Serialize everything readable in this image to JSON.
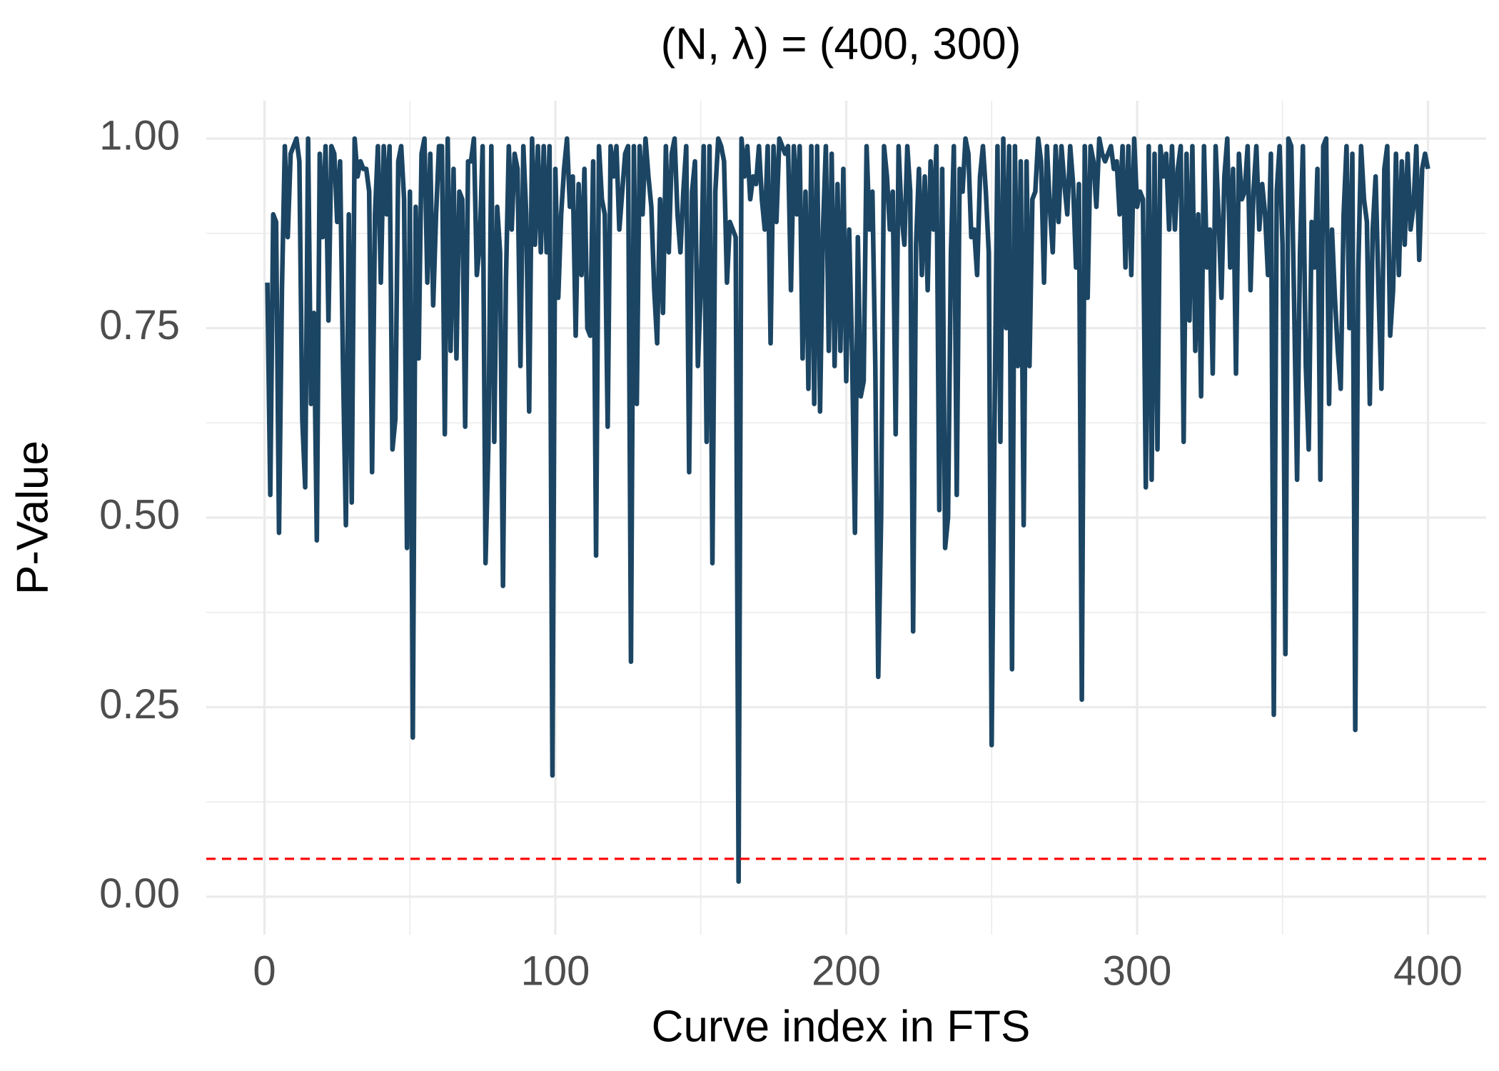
{
  "chart_data": {
    "type": "line",
    "title": "(N, λ) = (400, 300)",
    "xlabel": "Curve index in FTS",
    "ylabel": "P-Value",
    "x": [
      1,
      2,
      3,
      4,
      5,
      6,
      7,
      8,
      9,
      10,
      11,
      12,
      13,
      14,
      15,
      16,
      17,
      18,
      19,
      20,
      21,
      22,
      23,
      24,
      25,
      26,
      27,
      28,
      29,
      30,
      31,
      32,
      33,
      34,
      35,
      36,
      37,
      38,
      39,
      40,
      41,
      42,
      43,
      44,
      45,
      46,
      47,
      48,
      49,
      50,
      51,
      52,
      53,
      54,
      55,
      56,
      57,
      58,
      59,
      60,
      61,
      62,
      63,
      64,
      65,
      66,
      67,
      68,
      69,
      70,
      71,
      72,
      73,
      74,
      75,
      76,
      77,
      78,
      79,
      80,
      81,
      82,
      83,
      84,
      85,
      86,
      87,
      88,
      89,
      90,
      91,
      92,
      93,
      94,
      95,
      96,
      97,
      98,
      99,
      100,
      101,
      102,
      103,
      104,
      105,
      106,
      107,
      108,
      109,
      110,
      111,
      112,
      113,
      114,
      115,
      116,
      117,
      118,
      119,
      120,
      121,
      122,
      123,
      124,
      125,
      126,
      127,
      128,
      129,
      130,
      131,
      132,
      133,
      134,
      135,
      136,
      137,
      138,
      139,
      140,
      141,
      142,
      143,
      144,
      145,
      146,
      147,
      148,
      149,
      150,
      151,
      152,
      153,
      154,
      155,
      156,
      157,
      158,
      159,
      160,
      161,
      162,
      163,
      164,
      165,
      166,
      167,
      168,
      169,
      170,
      171,
      172,
      173,
      174,
      175,
      176,
      177,
      178,
      179,
      180,
      181,
      182,
      183,
      184,
      185,
      186,
      187,
      188,
      189,
      190,
      191,
      192,
      193,
      194,
      195,
      196,
      197,
      198,
      199,
      200,
      201,
      202,
      203,
      204,
      205,
      206,
      207,
      208,
      209,
      210,
      211,
      212,
      213,
      214,
      215,
      216,
      217,
      218,
      219,
      220,
      221,
      222,
      223,
      224,
      225,
      226,
      227,
      228,
      229,
      230,
      231,
      232,
      233,
      234,
      235,
      236,
      237,
      238,
      239,
      240,
      241,
      242,
      243,
      244,
      245,
      246,
      247,
      248,
      249,
      250,
      251,
      252,
      253,
      254,
      255,
      256,
      257,
      258,
      259,
      260,
      261,
      262,
      263,
      264,
      265,
      266,
      267,
      268,
      269,
      270,
      271,
      272,
      273,
      274,
      275,
      276,
      277,
      278,
      279,
      280,
      281,
      282,
      283,
      284,
      285,
      286,
      287,
      288,
      289,
      290,
      291,
      292,
      293,
      294,
      295,
      296,
      297,
      298,
      299,
      300,
      301,
      302,
      303,
      304,
      305,
      306,
      307,
      308,
      309,
      310,
      311,
      312,
      313,
      314,
      315,
      316,
      317,
      318,
      319,
      320,
      321,
      322,
      323,
      324,
      325,
      326,
      327,
      328,
      329,
      330,
      331,
      332,
      333,
      334,
      335,
      336,
      337,
      338,
      339,
      340,
      341,
      342,
      343,
      344,
      345,
      346,
      347,
      348,
      349,
      350,
      351,
      352,
      353,
      354,
      355,
      356,
      357,
      358,
      359,
      360,
      361,
      362,
      363,
      364,
      365,
      366,
      367,
      368,
      369,
      370,
      371,
      372,
      373,
      374,
      375,
      376,
      377,
      378,
      379,
      380,
      381,
      382,
      383,
      384,
      385,
      386,
      387,
      388,
      389,
      390,
      391,
      392,
      393,
      394,
      395,
      396,
      397,
      398,
      399,
      400
    ],
    "series": [
      {
        "name": "P-Value",
        "color": "#1b4563",
        "values": [
          0.81,
          0.53,
          0.9,
          0.89,
          0.48,
          0.8,
          0.99,
          0.87,
          0.98,
          0.99,
          1.0,
          0.97,
          0.63,
          0.54,
          1.0,
          0.65,
          0.77,
          0.47,
          0.98,
          0.87,
          0.99,
          0.76,
          0.99,
          0.98,
          0.89,
          0.97,
          0.7,
          0.49,
          0.9,
          0.52,
          1.0,
          0.95,
          0.97,
          0.96,
          0.96,
          0.93,
          0.56,
          0.9,
          0.99,
          0.81,
          0.99,
          0.9,
          0.99,
          0.59,
          0.63,
          0.97,
          0.99,
          0.92,
          0.46,
          0.93,
          0.21,
          0.91,
          0.71,
          0.98,
          1.0,
          0.81,
          0.98,
          0.78,
          0.9,
          0.99,
          0.99,
          0.61,
          1.0,
          0.72,
          0.96,
          0.71,
          0.93,
          0.92,
          0.62,
          0.97,
          0.97,
          1.0,
          0.82,
          0.86,
          0.99,
          0.44,
          0.6,
          0.99,
          0.6,
          0.91,
          0.85,
          0.41,
          0.81,
          0.99,
          0.88,
          0.98,
          0.96,
          0.7,
          0.99,
          0.9,
          0.64,
          1.0,
          0.86,
          0.99,
          0.85,
          0.99,
          0.85,
          0.99,
          0.16,
          0.96,
          0.79,
          0.9,
          0.96,
          1.0,
          0.91,
          0.95,
          0.74,
          0.94,
          0.82,
          0.96,
          0.75,
          0.74,
          0.97,
          0.45,
          0.99,
          0.92,
          0.9,
          0.62,
          0.99,
          0.95,
          0.99,
          0.88,
          0.93,
          0.98,
          0.99,
          0.31,
          0.99,
          0.65,
          0.99,
          0.9,
          1.0,
          0.95,
          0.91,
          0.8,
          0.73,
          0.92,
          0.77,
          0.99,
          0.85,
          0.98,
          1.0,
          0.9,
          0.85,
          0.93,
          0.99,
          0.56,
          0.93,
          0.97,
          0.7,
          0.8,
          0.99,
          0.6,
          0.99,
          0.44,
          0.93,
          1.0,
          0.99,
          0.97,
          0.81,
          0.89,
          0.88,
          0.87,
          0.02,
          1.0,
          0.95,
          0.99,
          0.92,
          0.95,
          0.94,
          0.99,
          0.92,
          0.88,
          0.99,
          0.73,
          0.99,
          0.89,
          1.0,
          0.99,
          0.98,
          0.99,
          0.8,
          0.99,
          0.9,
          0.99,
          0.71,
          0.93,
          0.67,
          0.99,
          0.65,
          0.99,
          0.64,
          0.88,
          0.99,
          0.72,
          0.98,
          0.7,
          0.94,
          0.72,
          0.96,
          0.68,
          0.88,
          0.72,
          0.48,
          0.87,
          0.66,
          0.68,
          0.99,
          0.88,
          0.93,
          0.7,
          0.29,
          0.5,
          0.99,
          0.95,
          0.88,
          0.93,
          0.61,
          0.99,
          0.9,
          0.86,
          0.99,
          0.93,
          0.35,
          0.86,
          0.96,
          0.82,
          0.95,
          0.8,
          0.97,
          0.88,
          0.99,
          0.51,
          0.96,
          0.46,
          0.5,
          0.85,
          0.99,
          0.53,
          0.96,
          0.93,
          1.0,
          0.98,
          0.87,
          0.88,
          0.82,
          0.95,
          0.99,
          0.93,
          0.85,
          0.2,
          0.63,
          0.99,
          0.6,
          1.0,
          0.75,
          0.99,
          0.3,
          0.99,
          0.7,
          0.97,
          0.49,
          0.97,
          0.7,
          0.92,
          0.93,
          1.0,
          0.97,
          0.81,
          0.99,
          0.91,
          0.85,
          0.99,
          0.89,
          0.99,
          0.94,
          0.9,
          0.99,
          0.94,
          0.83,
          0.94,
          0.26,
          0.99,
          0.79,
          0.99,
          0.97,
          0.91,
          1.0,
          0.98,
          0.97,
          0.98,
          0.99,
          0.96,
          0.97,
          0.9,
          0.99,
          0.83,
          0.99,
          0.82,
          1.0,
          0.91,
          0.93,
          0.92,
          0.54,
          0.99,
          0.55,
          0.98,
          0.59,
          0.99,
          0.95,
          0.98,
          0.88,
          0.99,
          0.88,
          0.96,
          0.99,
          0.6,
          0.98,
          0.76,
          0.99,
          0.72,
          0.9,
          0.66,
          0.99,
          0.83,
          0.88,
          0.69,
          0.99,
          0.9,
          0.79,
          0.95,
          1.0,
          0.83,
          0.96,
          0.69,
          0.98,
          0.92,
          0.93,
          0.99,
          0.8,
          0.93,
          0.99,
          0.88,
          0.94,
          0.9,
          0.82,
          0.98,
          0.24,
          0.93,
          0.99,
          0.86,
          0.32,
          1.0,
          0.99,
          0.78,
          0.55,
          0.85,
          0.99,
          0.7,
          0.59,
          0.89,
          0.83,
          0.96,
          0.55,
          0.99,
          1.0,
          0.65,
          0.88,
          0.79,
          0.72,
          0.67,
          0.9,
          0.99,
          0.75,
          0.98,
          0.22,
          0.82,
          0.99,
          0.92,
          0.89,
          0.65,
          0.88,
          0.95,
          0.8,
          0.67,
          0.96,
          0.99,
          0.74,
          0.8,
          0.98,
          0.82,
          0.97,
          0.86,
          0.98,
          0.88,
          0.91,
          0.99,
          0.84,
          0.96,
          0.98,
          0.96
        ]
      }
    ],
    "hline": {
      "value": 0.05,
      "color": "#ff0000",
      "dashed": true
    },
    "xlim": [
      -20,
      420
    ],
    "ylim": [
      -0.05,
      1.05
    ],
    "xticks": [
      0,
      100,
      200,
      300,
      400
    ],
    "yticks": [
      {
        "value": 0,
        "label": "0.00"
      },
      {
        "value": 0.25,
        "label": "0.25"
      },
      {
        "value": 0.5,
        "label": "0.50"
      },
      {
        "value": 0.75,
        "label": "0.75"
      },
      {
        "value": 1,
        "label": "1.00"
      }
    ],
    "xminorticks": [
      50,
      150,
      250,
      350
    ],
    "yminorticks": [
      0.125,
      0.375,
      0.625,
      0.875
    ],
    "grid": true
  }
}
